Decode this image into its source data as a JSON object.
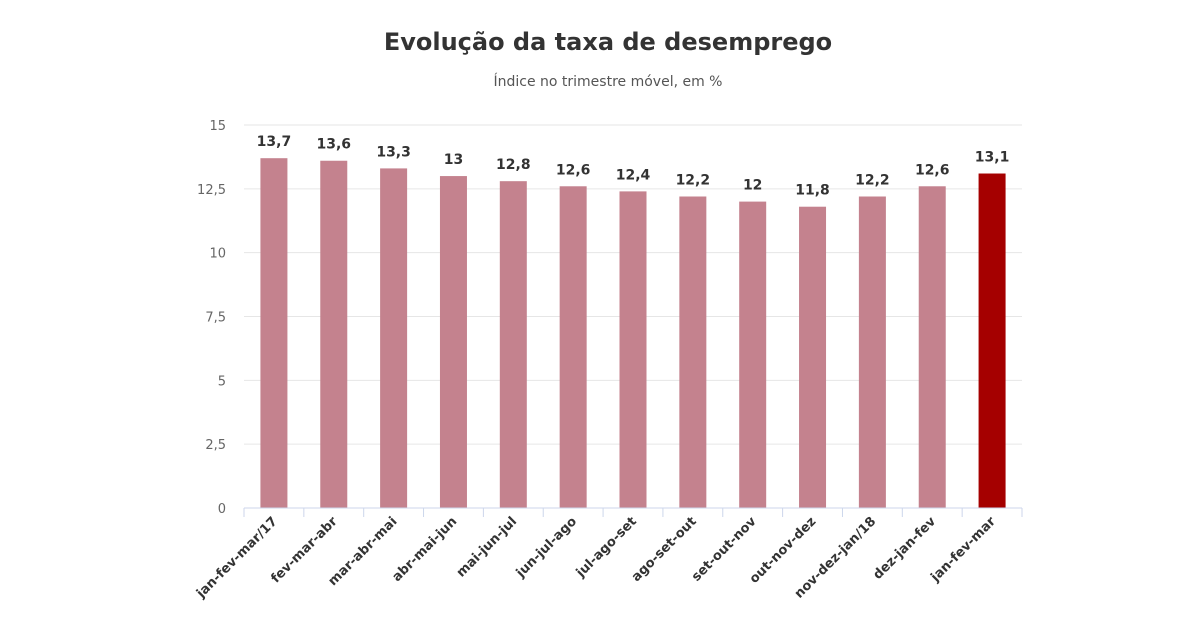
{
  "chart_data": {
    "type": "bar",
    "title": "Evolução da taxa de desemprego",
    "subtitle": "Índice no trimestre móvel, em %",
    "xlabel": "",
    "ylabel": "",
    "ylim": [
      0,
      15
    ],
    "yticks": [
      0,
      2.5,
      5,
      7.5,
      10,
      12.5,
      15
    ],
    "ytick_labels": [
      "0",
      "2,5",
      "5",
      "7,5",
      "10",
      "12,5",
      "15"
    ],
    "grid": true,
    "categories": [
      "jan-fev-mar/17",
      "fev-mar-abr",
      "mar-abr-mai",
      "abr-mai-jun",
      "mai-jun-jul",
      "jun-jul-ago",
      "jul-ago-set",
      "ago-set-out",
      "set-out-nov",
      "out-nov-dez",
      "nov-dez-jan/18",
      "dez-jan-fev",
      "jan-fev-mar"
    ],
    "values": [
      13.7,
      13.6,
      13.3,
      13,
      12.8,
      12.6,
      12.4,
      12.2,
      12,
      11.8,
      12.2,
      12.6,
      13.1
    ],
    "value_labels": [
      "13,7",
      "13,6",
      "13,3",
      "13",
      "12,8",
      "12,6",
      "12,4",
      "12,2",
      "12",
      "11,8",
      "12,2",
      "12,6",
      "13,1"
    ],
    "colors": {
      "bar": "#c4828e",
      "highlight": "#a50000",
      "grid": "#e6e6e6",
      "axis": "#ccd6eb"
    },
    "highlight_index": 12
  }
}
